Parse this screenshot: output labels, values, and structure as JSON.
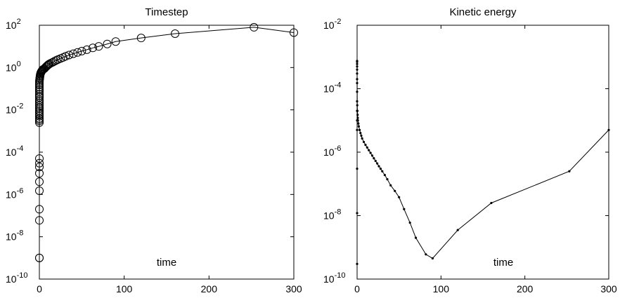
{
  "chart_data": [
    {
      "type": "line",
      "title": "Timestep",
      "xlabel": "time",
      "ylabel": "",
      "xlim": [
        0,
        300
      ],
      "ylim": [
        1e-10,
        100
      ],
      "yscale": "log",
      "grid": false,
      "x_ticks": [
        "0",
        "100",
        "200",
        "300"
      ],
      "y_ticks": [
        {
          "base": "10",
          "exp": "-10"
        },
        {
          "base": "10",
          "exp": "-8"
        },
        {
          "base": "10",
          "exp": "-6"
        },
        {
          "base": "10",
          "exp": "-4"
        },
        {
          "base": "10",
          "exp": "-2"
        },
        {
          "base": "10",
          "exp": "0"
        },
        {
          "base": "10",
          "exp": "2"
        }
      ],
      "marker": "open-circle",
      "series": [
        {
          "x": [
            0,
            0,
            0,
            0,
            0,
            0,
            0,
            0,
            0,
            0,
            0,
            0,
            0,
            0,
            0,
            0,
            0,
            0,
            0,
            0,
            0,
            0,
            0,
            0,
            0,
            0,
            0,
            0,
            0,
            0,
            0,
            0,
            0,
            0,
            0.2,
            0.4,
            0.6,
            0.8,
            1,
            1.3,
            1.6,
            2,
            2.5,
            3,
            3.5,
            4,
            5,
            6,
            7,
            8,
            9,
            10,
            11,
            12,
            14,
            16,
            18,
            20,
            22,
            25,
            28,
            31,
            35,
            40,
            45,
            50,
            56,
            63,
            70,
            80,
            90,
            120,
            160,
            253,
            300
          ],
          "y": [
            1e-09,
            1e-09,
            6e-08,
            2e-07,
            1.5e-06,
            4e-06,
            1e-05,
            2e-05,
            3e-05,
            5e-05,
            0.0025,
            0.003,
            0.0035,
            0.004,
            0.005,
            0.006,
            0.0075,
            0.009,
            0.011,
            0.013,
            0.016,
            0.02,
            0.025,
            0.03,
            0.038,
            0.045,
            0.055,
            0.07,
            0.085,
            0.1,
            0.12,
            0.15,
            0.18,
            0.22,
            0.26,
            0.3,
            0.35,
            0.4,
            0.45,
            0.5,
            0.55,
            0.6,
            0.65,
            0.7,
            0.75,
            0.8,
            0.85,
            0.9,
            1.0,
            1.1,
            1.2,
            1.3,
            1.4,
            1.5,
            1.65,
            1.8,
            2.0,
            2.2,
            2.4,
            2.7,
            3.0,
            3.4,
            3.9,
            4.5,
            5.2,
            6.0,
            7.0,
            8.5,
            10,
            13,
            17,
            25,
            40,
            80,
            45
          ]
        }
      ]
    },
    {
      "type": "line",
      "title": "Kinetic energy",
      "xlabel": "time",
      "ylabel": "",
      "xlim": [
        0,
        300
      ],
      "ylim": [
        1e-10,
        0.01
      ],
      "yscale": "log",
      "grid": false,
      "x_ticks": [
        "0",
        "100",
        "200",
        "300"
      ],
      "y_ticks": [
        {
          "base": "10",
          "exp": "-10"
        },
        {
          "base": "10",
          "exp": "-8"
        },
        {
          "base": "10",
          "exp": "-6"
        },
        {
          "base": "10",
          "exp": "-4"
        },
        {
          "base": "10",
          "exp": "-2"
        }
      ],
      "marker": "dot",
      "series": [
        {
          "x": [
            0,
            0,
            0,
            0,
            0,
            0,
            0,
            0,
            0,
            0,
            0,
            0,
            0,
            0,
            0,
            0,
            0.2,
            0.4,
            0.6,
            0.8,
            1,
            1.5,
            2,
            3,
            4,
            5,
            6,
            8,
            10,
            12,
            14,
            16,
            18,
            20,
            22,
            24,
            26,
            28,
            30,
            33,
            36,
            40,
            45,
            50,
            56,
            63,
            70,
            82,
            90,
            120,
            160,
            253,
            300
          ],
          "y": [
            3e-10,
            1.2e-08,
            3e-07,
            5e-06,
            1e-05,
            2e-05,
            4e-05,
            8e-05,
            0.00015,
            0.0002,
            0.0003,
            0.0004,
            0.0005,
            0.0006,
            0.0007,
            0.00075,
            3e-05,
            2e-05,
            1.5e-05,
            1.2e-05,
            1e-05,
            8e-06,
            6.5e-06,
            5e-06,
            4e-06,
            3.3e-06,
            2.7e-06,
            2.1e-06,
            1.7e-06,
            1.4e-06,
            1.15e-06,
            9.5e-07,
            7.8e-07,
            6.4e-07,
            5.3e-07,
            4.4e-07,
            3.6e-07,
            3e-07,
            2.5e-07,
            1.9e-07,
            1.4e-07,
            9e-08,
            6e-08,
            3.8e-08,
            1.6e-08,
            6e-09,
            2e-09,
            6e-10,
            4.5e-10,
            3.5e-09,
            2.5e-08,
            2.5e-07,
            5e-06
          ]
        }
      ]
    }
  ]
}
